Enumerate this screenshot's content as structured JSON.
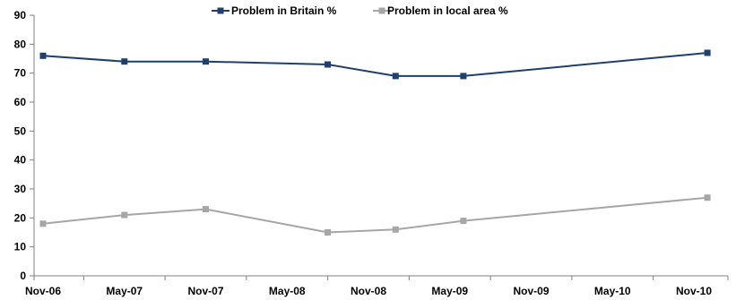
{
  "chart_data": {
    "type": "line",
    "x": [
      "2006-11",
      "2007-05",
      "2007-11",
      "2008-08",
      "2009-01",
      "2009-06",
      "2010-12"
    ],
    "x_ticks": [
      "Nov-06",
      "May-07",
      "Nov-07",
      "May-08",
      "Nov-08",
      "May-09",
      "Nov-09",
      "May-10",
      "Nov-10"
    ],
    "x_tick_dates": [
      "2006-11",
      "2007-05",
      "2007-11",
      "2008-05",
      "2008-11",
      "2009-05",
      "2009-11",
      "2010-05",
      "2010-11"
    ],
    "y_ticks": [
      "0",
      "10",
      "20",
      "30",
      "40",
      "50",
      "60",
      "70",
      "80",
      "90"
    ],
    "ylim": [
      0,
      90
    ],
    "grid": false,
    "legend_position": "top-center",
    "series": [
      {
        "name": "Problem in Britain %",
        "color": "#1F3F6E",
        "marker": "square",
        "values": [
          76,
          74,
          74,
          73,
          69,
          69,
          77
        ]
      },
      {
        "name": "Problem in local area %",
        "color": "#A6A6A6",
        "marker": "square",
        "values": [
          18,
          21,
          23,
          15,
          16,
          19,
          27
        ]
      }
    ],
    "title": "",
    "xlabel": "",
    "ylabel": ""
  }
}
